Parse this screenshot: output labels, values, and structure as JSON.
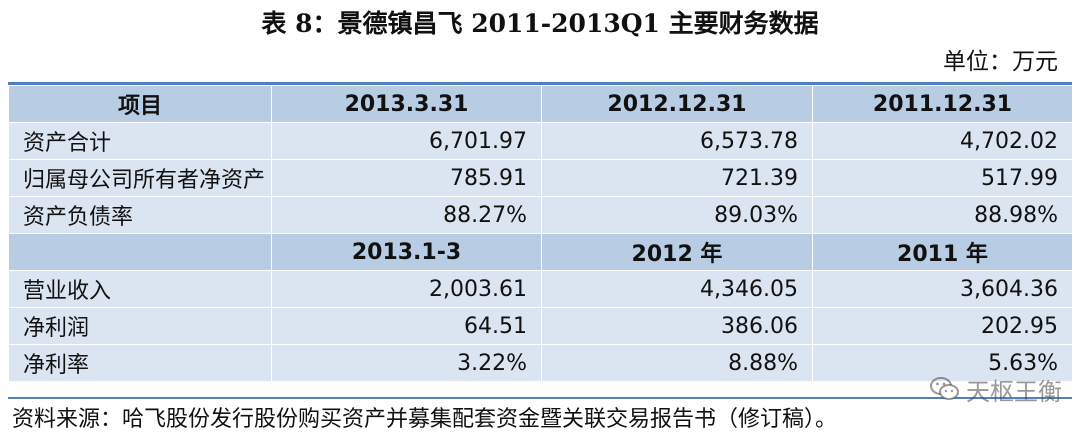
{
  "title": "表 8：景德镇昌飞 2011-2013Q1 主要财务数据",
  "unit": "单位：万元",
  "table": {
    "header1": [
      "项目",
      "2013.3.31",
      "2012.12.31",
      "2011.12.31"
    ],
    "rows1": [
      [
        "资产合计",
        "6,701.97",
        "6,573.78",
        "4,702.02"
      ],
      [
        "归属母公司所有者净资产",
        "785.91",
        "721.39",
        "517.99"
      ],
      [
        "资产负债率",
        "88.27%",
        "89.03%",
        "88.98%"
      ]
    ],
    "header2": [
      "",
      "2013.1-3",
      "2012 年",
      "2011 年"
    ],
    "rows2": [
      [
        "营业收入",
        "2,003.61",
        "4,346.05",
        "3,604.36"
      ],
      [
        "净利润",
        "64.51",
        "386.06",
        "202.95"
      ],
      [
        "净利率",
        "3.22%",
        "8.88%",
        "5.63%"
      ]
    ]
  },
  "source": "资料来源：哈飞股份发行股份购买资产并募集配套资金暨关联交易报告书（修订稿）。",
  "watermark": {
    "text": "天枢王衡",
    "icon": "wechat-icon"
  },
  "colors": {
    "header_bg": "#b8cce4",
    "row_bg": "#dbe5f1",
    "rule": "#4f81bd"
  }
}
